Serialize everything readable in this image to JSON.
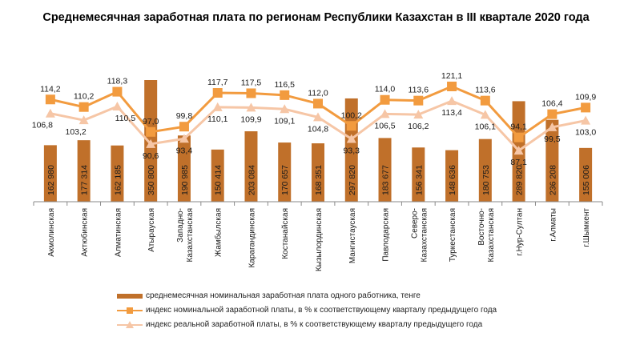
{
  "chart_data": {
    "type": "bar",
    "title": "Среднемесячная заработная  плата по регионам Республики Казахстан в III квартале 2020 года",
    "categories": [
      "Акмолинская",
      "Актюбинская",
      "Алматинская",
      "Атырауская",
      "Западно-\nКазахстанская",
      "Жамбылская",
      "Карагандинская",
      "Костанайская",
      "Кызылординская",
      "Мангистауская",
      "Павлодарская",
      "Северо-\nКазахстанская",
      "Туркестанская",
      "Восточно-\nКазахстанская",
      "г.Нур-Султан",
      "г.Алматы",
      "г.Шымкент"
    ],
    "series": [
      {
        "name": "среднемесячная номинальная заработная плата одного работника, тенге",
        "kind": "bar",
        "color": "#C0702A",
        "values": [
          162980,
          177314,
          162185,
          350800,
          190985,
          150414,
          203084,
          170657,
          168351,
          297820,
          183677,
          156341,
          148636,
          180753,
          289820,
          236208,
          155006
        ],
        "labels": [
          "162 980",
          "177 314",
          "162 185",
          "350 800",
          "190 985",
          "150 414",
          "203 084",
          "170 657",
          "168 351",
          "297 820",
          "183 677",
          "156 341",
          "148 636",
          "180 753",
          "289 820",
          "236 208",
          "155 006"
        ]
      },
      {
        "name": "индекс номинальной заработной платы, в % к соответствующему кварталу предыдущего года",
        "kind": "line",
        "color": "#F29B3F",
        "values": [
          114.2,
          110.2,
          118.3,
          97.0,
          99.8,
          117.7,
          117.5,
          116.5,
          112.0,
          100.2,
          114.0,
          113.6,
          121.1,
          113.6,
          94.1,
          106.4,
          109.9
        ],
        "labels": [
          "114,2",
          "110,2",
          "118,3",
          "97,0",
          "99,8",
          "117,7",
          "117,5",
          "116,5",
          "112,0",
          "100,2",
          "114,0",
          "113,6",
          "121,1",
          "113,6",
          "94,1",
          "106,4",
          "109,9"
        ]
      },
      {
        "name": "индекс реальной заработной платы, в % к соответствующему кварталу предыдущего года",
        "kind": "line",
        "color": "#F6C6A6",
        "values": [
          106.8,
          103.2,
          110.5,
          90.6,
          93.4,
          110.1,
          109.9,
          109.1,
          104.8,
          93.3,
          106.5,
          106.2,
          113.4,
          106.1,
          87.1,
          99.5,
          103.0
        ],
        "labels": [
          "106,8",
          "103,2",
          "110,5",
          "90,6",
          "93,4",
          "110,1",
          "109,9",
          "109,1",
          "104,8",
          "93,3",
          "106,5",
          "106,2",
          "113,4",
          "106,1",
          "87,1",
          "99,5",
          "103,0"
        ]
      }
    ],
    "bar_range": [
      0,
      350800
    ],
    "index_range": [
      60,
      121.1
    ],
    "grid": false,
    "legend_position": "bottom"
  }
}
